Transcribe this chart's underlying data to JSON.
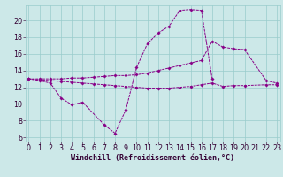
{
  "bg_color": "#cce8e8",
  "line_color": "#880088",
  "grid_color": "#99cccc",
  "xlabel": "Windchill (Refroidissement éolien,°C)",
  "xlabel_fontsize": 6.0,
  "tick_fontsize": 5.8,
  "xlim": [
    -0.3,
    23.3
  ],
  "ylim": [
    5.5,
    21.8
  ],
  "yticks": [
    6,
    8,
    10,
    12,
    14,
    16,
    18,
    20
  ],
  "xticks": [
    0,
    1,
    2,
    3,
    4,
    5,
    6,
    7,
    8,
    9,
    10,
    11,
    12,
    13,
    14,
    15,
    16,
    17,
    18,
    19,
    20,
    21,
    22,
    23
  ],
  "segments": [
    [
      [
        0,
        1,
        2,
        3,
        4,
        5,
        7,
        8,
        9,
        10,
        11,
        12,
        13,
        14,
        15,
        16,
        17
      ],
      [
        13.0,
        12.8,
        12.5,
        10.7,
        9.9,
        10.2,
        7.5,
        6.5,
        9.3,
        14.4,
        17.2,
        18.5,
        19.3,
        21.2,
        21.3,
        21.2,
        13.0
      ]
    ],
    [
      [
        0,
        1,
        2,
        3,
        4,
        5,
        6,
        7,
        8,
        9,
        10,
        11,
        12,
        13,
        14,
        15,
        16,
        17,
        18,
        19,
        20,
        22,
        23
      ],
      [
        13.0,
        13.0,
        13.0,
        13.0,
        13.1,
        13.1,
        13.2,
        13.3,
        13.4,
        13.4,
        13.5,
        13.7,
        14.0,
        14.3,
        14.6,
        14.9,
        15.2,
        17.5,
        16.8,
        16.6,
        16.5,
        12.8,
        12.5
      ]
    ],
    [
      [
        0,
        1,
        2,
        3,
        4,
        5,
        6,
        7,
        8,
        9,
        10,
        11,
        12,
        13,
        14,
        15,
        16,
        17,
        18,
        19,
        20,
        22,
        23
      ],
      [
        13.0,
        12.9,
        12.8,
        12.7,
        12.6,
        12.5,
        12.4,
        12.3,
        12.2,
        12.1,
        12.0,
        11.9,
        11.9,
        11.9,
        12.0,
        12.1,
        12.3,
        12.5,
        12.1,
        12.2,
        12.2,
        12.3,
        12.3
      ]
    ]
  ]
}
